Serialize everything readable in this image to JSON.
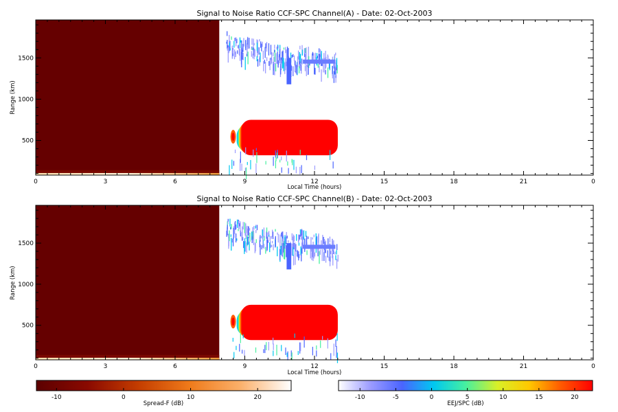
{
  "charts": [
    {
      "title": "Signal to Noise Ratio CCF-SPC Channel(A) - Date: 02-Oct-2003",
      "xlabel": "Local Time (hours)",
      "ylabel": "Range (km)"
    },
    {
      "title": "Signal to Noise Ratio CCF-SPC Channel(B) - Date: 02-Oct-2003",
      "xlabel": "Local Time (hours)",
      "ylabel": "Range (km)"
    }
  ],
  "colorbars": [
    {
      "label": "Spread-F (dB)",
      "ticks": [
        "-10",
        "0",
        "10",
        "20"
      ],
      "range": [
        -13,
        25
      ]
    },
    {
      "label": "EEJ/SPC (dB)",
      "ticks": [
        "-10",
        "-5",
        "0",
        "5",
        "10",
        "15",
        "20"
      ],
      "range": [
        -13,
        22.5
      ]
    }
  ],
  "chart_data": [
    {
      "type": "heatmap",
      "title": "Signal to Noise Ratio CCF-SPC Channel(A) - Date: 02-Oct-2003",
      "xlabel": "Local Time (hours)",
      "ylabel": "Range (km)",
      "x_ticks": [
        "0",
        "3",
        "6",
        "9",
        "12",
        "15",
        "18",
        "21",
        "0"
      ],
      "y_ticks": [
        "500",
        "1000",
        "1500"
      ],
      "xlim": [
        0,
        24
      ],
      "ylim": [
        80,
        1960
      ],
      "regions": [
        {
          "name": "Spread-F",
          "x": [
            0,
            7.9
          ],
          "y": [
            80,
            1960
          ],
          "value_db": -12
        },
        {
          "name": "Spread-F low band",
          "x": [
            0,
            7.9
          ],
          "y": [
            80,
            140
          ],
          "value_db": 18
        },
        {
          "name": "EEJ/SPC strong echo",
          "x": [
            8.4,
            13.0
          ],
          "y": [
            330,
            720
          ],
          "value_db": 21
        },
        {
          "name": "EEJ/SPC upper echo",
          "x": [
            8.2,
            13.0
          ],
          "y": [
            1200,
            1800
          ],
          "value_db": -6
        }
      ],
      "colorscales": {
        "Spread-F": [
          "#5c0000",
          "#8a0a00",
          "#c43d00",
          "#ef7a1a",
          "#fbb06a",
          "#ffffff"
        ],
        "EEJ/SPC": [
          "#ffffff",
          "#9c9cff",
          "#4a64ff",
          "#00c8f0",
          "#46f0a0",
          "#d8f028",
          "#ffc800",
          "#ff5a00",
          "#ff0000"
        ]
      }
    },
    {
      "type": "heatmap",
      "title": "Signal to Noise Ratio CCF-SPC Channel(B) - Date: 02-Oct-2003",
      "xlabel": "Local Time (hours)",
      "ylabel": "Range (km)",
      "x_ticks": [
        "0",
        "3",
        "6",
        "9",
        "12",
        "15",
        "18",
        "21",
        "0"
      ],
      "y_ticks": [
        "500",
        "1000",
        "1500"
      ],
      "xlim": [
        0,
        24
      ],
      "ylim": [
        80,
        1960
      ],
      "regions": [
        {
          "name": "Spread-F",
          "x": [
            0,
            7.9
          ],
          "y": [
            80,
            1960
          ],
          "value_db": -12
        },
        {
          "name": "Spread-F low band",
          "x": [
            0,
            7.9
          ],
          "y": [
            80,
            140
          ],
          "value_db": 18
        },
        {
          "name": "EEJ/SPC strong echo",
          "x": [
            8.4,
            13.0
          ],
          "y": [
            330,
            720
          ],
          "value_db": 21
        },
        {
          "name": "EEJ/SPC upper echo",
          "x": [
            8.2,
            13.0
          ],
          "y": [
            1200,
            1800
          ],
          "value_db": -6
        }
      ],
      "colorscales": {
        "Spread-F": [
          "#5c0000",
          "#8a0a00",
          "#c43d00",
          "#ef7a1a",
          "#fbb06a",
          "#ffffff"
        ],
        "EEJ/SPC": [
          "#ffffff",
          "#9c9cff",
          "#4a64ff",
          "#00c8f0",
          "#46f0a0",
          "#d8f028",
          "#ffc800",
          "#ff5a00",
          "#ff0000"
        ]
      }
    }
  ]
}
